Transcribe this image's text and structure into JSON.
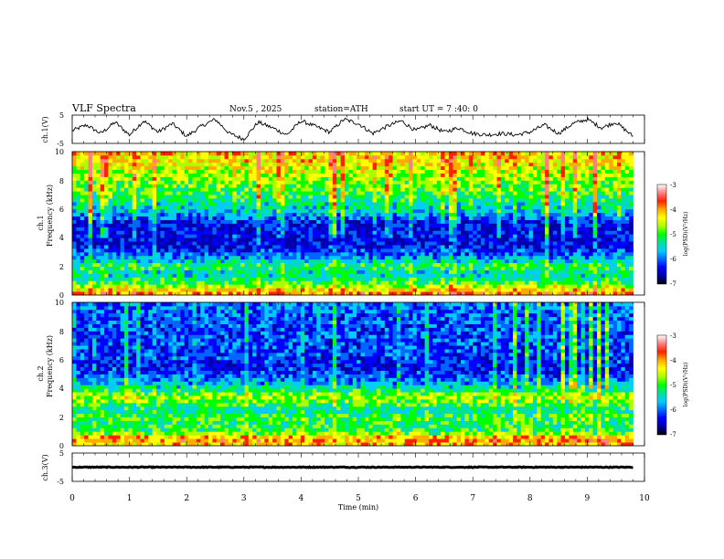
{
  "header": {
    "title": "VLF  Spectra",
    "date": "Nov.5  , 2025",
    "station": "station=ATH",
    "start_ut": "start  UT  =   7  :40: 0"
  },
  "colors": {
    "trace": "#000000",
    "frame": "#000000",
    "colormap": [
      "#000000",
      "#0000aa",
      "#0000ff",
      "#0066ff",
      "#00ccff",
      "#00e0a0",
      "#00ff00",
      "#aaff00",
      "#ffff00",
      "#ffaa00",
      "#ff2200",
      "#ff8080",
      "#ffffff"
    ]
  },
  "chart_data": [
    {
      "id": "ch1-waveform",
      "type": "line",
      "ylabel": "ch.1(V)",
      "ylim": [
        -5,
        5
      ],
      "y_ticks": [
        "5",
        "-5"
      ],
      "xlim": [
        0,
        10
      ],
      "x": [
        0,
        0.25,
        0.5,
        0.75,
        1.0,
        1.25,
        1.5,
        1.75,
        2.0,
        2.25,
        2.5,
        2.75,
        3.0,
        3.25,
        3.5,
        3.75,
        4.0,
        4.25,
        4.5,
        4.75,
        5.0,
        5.25,
        5.5,
        5.75,
        6.0,
        6.25,
        6.5,
        6.75,
        7.0,
        7.25,
        7.5,
        7.75,
        8.0,
        8.25,
        8.5,
        8.75,
        9.0,
        9.25,
        9.5,
        9.8
      ],
      "y": [
        -0.5,
        1.5,
        -1.5,
        2.5,
        -2.0,
        3.0,
        -1.0,
        2.0,
        -2.5,
        1.0,
        3.5,
        -1.5,
        -3.5,
        2.5,
        0.5,
        -2.0,
        3.0,
        1.0,
        -1.0,
        3.5,
        2.0,
        -1.5,
        1.0,
        3.0,
        -0.5,
        1.5,
        -1.0,
        0.5,
        -1.5,
        -2.0,
        -1.5,
        -2.0,
        -1.0,
        1.5,
        -1.5,
        2.0,
        3.5,
        0.5,
        2.5,
        -2.5
      ]
    },
    {
      "id": "ch1-spectrogram",
      "type": "heatmap",
      "channel_label": "ch.1",
      "ylabel": "Frequency  (kHz)",
      "ylim": [
        0,
        10
      ],
      "y_ticks": [
        "0",
        "2",
        "4",
        "6",
        "8",
        "10"
      ],
      "xlim": [
        0,
        10
      ],
      "colorbar_label": "log(PSD)(V²/Hz)",
      "colorbar_range": [
        -7,
        -3
      ],
      "colorbar_ticks": [
        "-3",
        "-4",
        "-5",
        "-6",
        "-7"
      ],
      "freq_kHz": [
        0.0,
        0.5,
        1.0,
        1.5,
        2.0,
        2.5,
        3.0,
        3.5,
        4.0,
        4.5,
        5.0,
        5.5,
        6.0,
        6.5,
        7.0,
        7.5,
        8.0,
        8.5,
        9.0,
        9.5,
        10.0
      ],
      "log_psd": [
        -3.5,
        -4.2,
        -5.0,
        -5.4,
        -4.9,
        -5.6,
        -6.1,
        -6.4,
        -6.5,
        -6.3,
        -6.4,
        -5.8,
        -5.4,
        -5.2,
        -4.9,
        -4.7,
        -4.6,
        -4.4,
        -4.2,
        -4.0,
        -3.9
      ]
    },
    {
      "id": "ch2-spectrogram",
      "type": "heatmap",
      "channel_label": "ch.2",
      "ylabel": "Frequency  (kHz)",
      "ylim": [
        0,
        10
      ],
      "y_ticks": [
        "0",
        "2",
        "4",
        "6",
        "8",
        "10"
      ],
      "xlim": [
        0,
        10
      ],
      "colorbar_label": "log(PSD)(V²/Hz)",
      "colorbar_range": [
        -7,
        -3
      ],
      "colorbar_ticks": [
        "-3",
        "-4",
        "-5",
        "-6",
        "-7"
      ],
      "freq_kHz": [
        0.0,
        0.5,
        1.0,
        1.5,
        2.0,
        2.5,
        3.0,
        3.5,
        4.0,
        4.5,
        5.0,
        5.5,
        6.0,
        6.5,
        7.0,
        7.5,
        8.0,
        8.5,
        9.0,
        9.5,
        10.0
      ],
      "log_psd": [
        -4.0,
        -3.6,
        -4.9,
        -5.0,
        -4.8,
        -5.3,
        -4.7,
        -4.4,
        -5.2,
        -5.7,
        -6.1,
        -6.3,
        -6.2,
        -6.1,
        -6.1,
        -6.0,
        -6.1,
        -6.0,
        -6.0,
        -5.9,
        -5.9
      ]
    },
    {
      "id": "ch3-waveform",
      "type": "line",
      "ylabel": "ch.3(V)",
      "ylim": [
        -5,
        5
      ],
      "y_ticks": [
        "5",
        "-5"
      ],
      "xlim": [
        0,
        10
      ],
      "x": [
        0,
        9.8
      ],
      "y": [
        0,
        0
      ],
      "xlabel": "Time  (min)",
      "x_ticks": [
        "0",
        "1",
        "2",
        "3",
        "4",
        "5",
        "6",
        "7",
        "8",
        "9",
        "10"
      ]
    }
  ]
}
